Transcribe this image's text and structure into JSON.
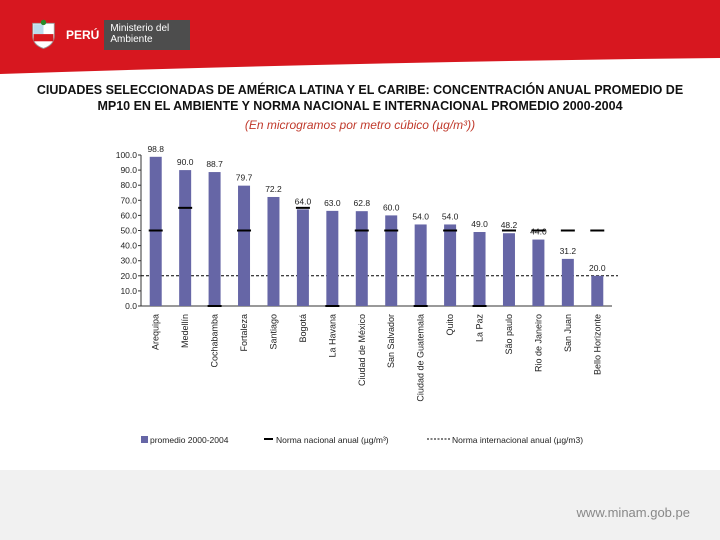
{
  "header": {
    "country": "PERÚ",
    "ministry": "Ministerio del Ambiente",
    "title": "CIUDADES SELECCIONADAS DE AMÉRICA LATINA Y EL CARIBE: CONCENTRACIÓN ANUAL PROMEDIO DE MP10 EN EL AMBIENTE Y NORMA NACIONAL E INTERNACIONAL PROMEDIO 2000-2004",
    "subtitle": "(En microgramos por metro cúbico (µg/m³))"
  },
  "footer": {
    "url": "www.minam.gob.pe"
  },
  "colors": {
    "bar": "#6666a6",
    "accent": "#d7171f",
    "marker": "#000000"
  },
  "chart_data": {
    "type": "bar",
    "title": "CIUDADES SELECCIONADAS DE AMÉRICA LATINA Y EL CARIBE: CONCENTRACIÓN ANUAL PROMEDIO DE MP10",
    "categories": [
      "Arequipa",
      "Medellín",
      "Cochabamba",
      "Fortaleza",
      "Santiago",
      "Bogotá",
      "La Havana",
      "Ciudad de México",
      "San Salvador",
      "Ciudad de Guatemala",
      "Quito",
      "La Paz",
      "São paulo",
      "Rio de Janeiro",
      "San Juan",
      "Bello Horizonte"
    ],
    "values": [
      98.8,
      90.0,
      88.7,
      79.7,
      72.2,
      64.0,
      63.0,
      62.8,
      60.0,
      54.0,
      54.0,
      49.0,
      48.2,
      44.0,
      31.2,
      20.0
    ],
    "value_labels": [
      "98.8",
      "90.0",
      "88.7",
      "79.7",
      "72.2",
      "64.0",
      "63.0",
      "62.8",
      "60.0",
      "54.0",
      "54.0",
      "49.0",
      "48.2",
      "44.0",
      "31.2",
      "20.0"
    ],
    "national_norm": [
      50,
      65,
      0,
      50,
      null,
      65,
      0,
      50,
      50,
      0,
      50,
      0,
      50,
      50,
      50,
      50
    ],
    "international_norm": 20,
    "ylim": [
      0,
      100
    ],
    "yticks": [
      "0.0",
      "10.0",
      "20.0",
      "30.0",
      "40.0",
      "50.0",
      "60.0",
      "70.0",
      "80.0",
      "90.0",
      "100.0"
    ],
    "legend": {
      "bar": "promedio 2000-2004",
      "national": "Norma nacional anual (µg/m³)",
      "international": "Norma internacional anual (µg/m3)"
    },
    "legend_position": "bottom"
  }
}
